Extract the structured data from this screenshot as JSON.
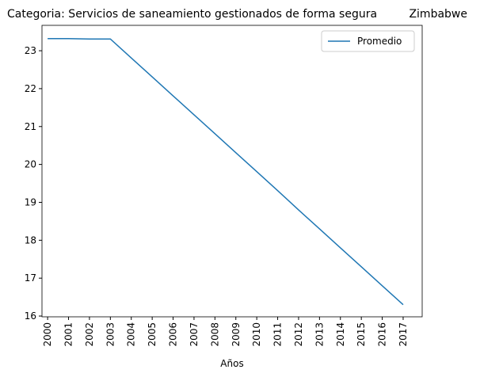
{
  "chart_data": {
    "type": "line",
    "title": "Categoria: Servicios de saneamiento gestionados de forma segura",
    "title_right": "Zimbabwe",
    "x_label": "Años",
    "x": [
      2000,
      2001,
      2002,
      2003,
      2004,
      2005,
      2006,
      2007,
      2008,
      2009,
      2010,
      2011,
      2012,
      2013,
      2014,
      2015,
      2016,
      2017
    ],
    "series": [
      {
        "name": "Promedio",
        "color": "#1f77b4",
        "values": [
          23.32,
          23.32,
          23.31,
          23.31,
          22.81,
          22.31,
          21.81,
          21.31,
          20.81,
          20.31,
          19.81,
          19.31,
          18.8,
          18.3,
          17.8,
          17.3,
          16.8,
          16.3
        ]
      }
    ],
    "xlim": [
      1999.73,
      2017.91
    ],
    "xticks": [
      2000,
      2001,
      2002,
      2003,
      2004,
      2005,
      2006,
      2007,
      2008,
      2009,
      2010,
      2011,
      2012,
      2013,
      2014,
      2015,
      2016,
      2017
    ],
    "ylim": [
      15.98,
      23.67
    ],
    "yticks": [
      16,
      17,
      18,
      19,
      20,
      21,
      22,
      23
    ],
    "legend": "upper right"
  }
}
